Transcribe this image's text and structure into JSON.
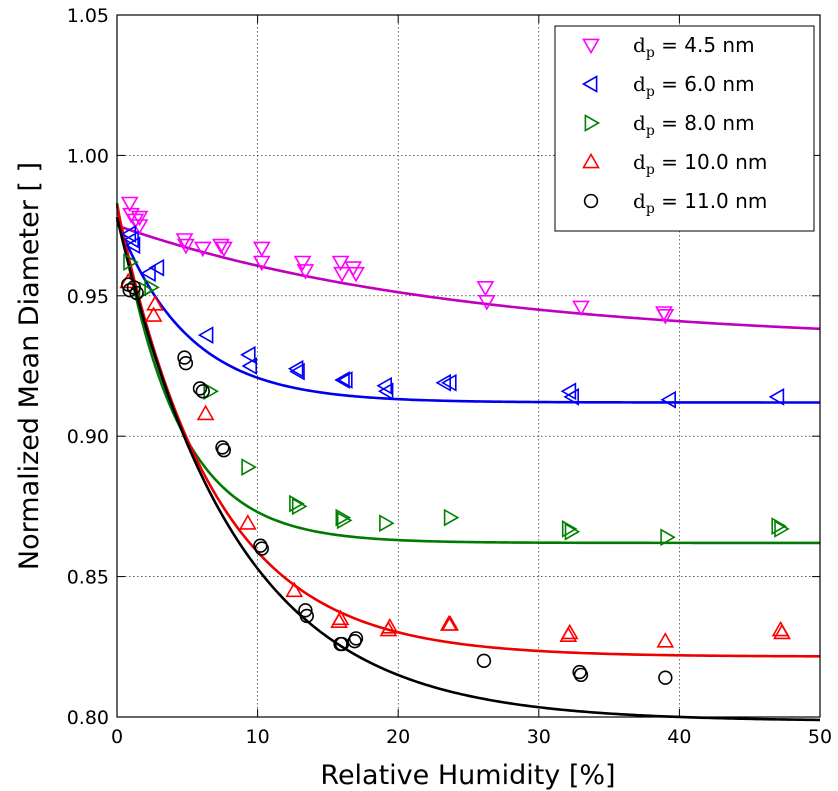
{
  "chart_data": {
    "type": "scatter",
    "xlabel": "Relative Humidity [%]",
    "ylabel": "Normalized Mean Diameter [ ]",
    "xlim": [
      0,
      50
    ],
    "ylim": [
      0.8,
      1.05
    ],
    "xticks": [
      "0",
      "10",
      "20",
      "30",
      "40",
      "50"
    ],
    "yticks": [
      "0.80",
      "0.85",
      "0.90",
      "0.95",
      "1.00",
      "1.05"
    ],
    "grid": true,
    "legend_position": "top-right",
    "series": [
      {
        "name_main": "d",
        "name_sub": "p",
        "name_value": " = 4.5 nm",
        "marker": "triangle-down",
        "color": "#ff00ff",
        "fit_color": "#bf00bf",
        "points": [
          [
            0.9,
            0.983
          ],
          [
            1.0,
            0.979
          ],
          [
            1.3,
            0.977
          ],
          [
            1.6,
            0.978
          ],
          [
            1.6,
            0.975
          ],
          [
            4.8,
            0.97
          ],
          [
            4.9,
            0.968
          ],
          [
            6.1,
            0.967
          ],
          [
            7.4,
            0.968
          ],
          [
            7.6,
            0.967
          ],
          [
            10.3,
            0.967
          ],
          [
            10.3,
            0.962
          ],
          [
            13.2,
            0.962
          ],
          [
            13.4,
            0.959
          ],
          [
            15.9,
            0.962
          ],
          [
            16.0,
            0.958
          ],
          [
            16.8,
            0.96
          ],
          [
            17.0,
            0.958
          ],
          [
            26.2,
            0.953
          ],
          [
            26.3,
            0.948
          ],
          [
            33.0,
            0.946
          ],
          [
            38.9,
            0.944
          ],
          [
            39.0,
            0.943
          ]
        ],
        "fit": {
          "y0": 0.975,
          "yinf": 0.933,
          "k": 0.0416
        }
      },
      {
        "name_main": "d",
        "name_sub": "p",
        "name_value": " = 6.0 nm",
        "marker": "triangle-left",
        "color": "#0000ff",
        "fit_color": "#0000ee",
        "points": [
          [
            0.9,
            0.972
          ],
          [
            1.1,
            0.97
          ],
          [
            1.2,
            0.968
          ],
          [
            2.3,
            0.958
          ],
          [
            2.9,
            0.96
          ],
          [
            6.4,
            0.936
          ],
          [
            9.4,
            0.929
          ],
          [
            9.5,
            0.925
          ],
          [
            12.8,
            0.924
          ],
          [
            12.9,
            0.923
          ],
          [
            16.1,
            0.92
          ],
          [
            16.3,
            0.92
          ],
          [
            19.1,
            0.918
          ],
          [
            19.2,
            0.916
          ],
          [
            23.3,
            0.919
          ],
          [
            23.7,
            0.919
          ],
          [
            32.2,
            0.916
          ],
          [
            32.4,
            0.914
          ],
          [
            39.3,
            0.913
          ],
          [
            47.0,
            0.914
          ]
        ],
        "fit": {
          "y0": 0.977,
          "yinf": 0.912,
          "k": 0.2
        }
      },
      {
        "name_main": "d",
        "name_sub": "p",
        "name_value": " = 8.0 nm",
        "marker": "triangle-right",
        "color": "#008000",
        "fit_color": "#007a00",
        "points": [
          [
            0.9,
            0.962
          ],
          [
            2.0,
            0.952
          ],
          [
            2.4,
            0.953
          ],
          [
            6.6,
            0.916
          ],
          [
            9.3,
            0.889
          ],
          [
            12.7,
            0.876
          ],
          [
            12.9,
            0.875
          ],
          [
            16.0,
            0.871
          ],
          [
            16.1,
            0.87
          ],
          [
            19.1,
            0.869
          ],
          [
            23.7,
            0.871
          ],
          [
            32.1,
            0.867
          ],
          [
            32.3,
            0.866
          ],
          [
            39.1,
            0.864
          ],
          [
            47.0,
            0.868
          ],
          [
            47.2,
            0.867
          ]
        ],
        "fit": {
          "y0": 0.983,
          "yinf": 0.862,
          "k": 0.24
        }
      },
      {
        "name_main": "d",
        "name_sub": "p",
        "name_value": " = 10.0 nm",
        "marker": "triangle-up",
        "color": "#ff0000",
        "fit_color": "#ee0000",
        "points": [
          [
            0.8,
            0.955
          ],
          [
            2.6,
            0.943
          ],
          [
            2.7,
            0.947
          ],
          [
            6.3,
            0.908
          ],
          [
            9.3,
            0.869
          ],
          [
            12.6,
            0.845
          ],
          [
            15.8,
            0.834
          ],
          [
            15.9,
            0.835
          ],
          [
            19.3,
            0.831
          ],
          [
            19.4,
            0.832
          ],
          [
            23.6,
            0.833
          ],
          [
            23.7,
            0.833
          ],
          [
            32.1,
            0.829
          ],
          [
            32.2,
            0.83
          ],
          [
            39.0,
            0.827
          ],
          [
            47.2,
            0.831
          ],
          [
            47.3,
            0.83
          ]
        ],
        "fit": {
          "y0": 0.982,
          "yinf": 0.8215,
          "k": 0.146
        }
      },
      {
        "name_main": "d",
        "name_sub": "p",
        "name_value": " = 11.0 nm",
        "marker": "circle",
        "color": "#000000",
        "fit_color": "#000000",
        "points": [
          [
            0.8,
            0.954
          ],
          [
            0.9,
            0.952
          ],
          [
            1.2,
            0.953
          ],
          [
            1.4,
            0.951
          ],
          [
            4.8,
            0.928
          ],
          [
            4.9,
            0.926
          ],
          [
            5.9,
            0.917
          ],
          [
            6.1,
            0.916
          ],
          [
            7.5,
            0.896
          ],
          [
            7.6,
            0.895
          ],
          [
            10.2,
            0.861
          ],
          [
            10.3,
            0.86
          ],
          [
            13.4,
            0.838
          ],
          [
            13.5,
            0.836
          ],
          [
            15.9,
            0.826
          ],
          [
            16.0,
            0.826
          ],
          [
            16.9,
            0.827
          ],
          [
            17.0,
            0.828
          ],
          [
            26.1,
            0.82
          ],
          [
            32.9,
            0.816
          ],
          [
            33.0,
            0.815
          ],
          [
            39.0,
            0.814
          ]
        ],
        "fit": {
          "y0": 0.978,
          "yinf": 0.7985,
          "k": 0.1195
        }
      }
    ]
  }
}
